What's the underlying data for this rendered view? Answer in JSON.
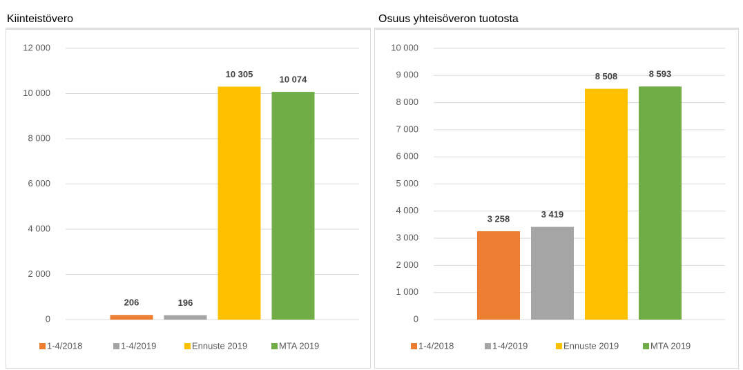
{
  "chart_data": [
    {
      "type": "bar",
      "title": "Kiinteistövero",
      "series": [
        {
          "name": "1-4/2018",
          "color": "#ed7d31",
          "values": [
            206
          ],
          "value_labels": [
            "206"
          ]
        },
        {
          "name": "1-4/2019",
          "color": "#a5a5a5",
          "values": [
            196
          ],
          "value_labels": [
            "196"
          ]
        },
        {
          "name": "Ennuste 2019",
          "color": "#ffc000",
          "values": [
            10305
          ],
          "value_labels": [
            "10 305"
          ]
        },
        {
          "name": "MTA 2019",
          "color": "#70ad47",
          "values": [
            10074
          ],
          "value_labels": [
            "10 074"
          ]
        }
      ],
      "ylim": [
        0,
        12000
      ],
      "yticks": [
        0,
        {
          "value": 2000,
          "label": "2 000"
        },
        {
          "value": 4000,
          "label": "4 000"
        },
        {
          "value": 6000,
          "label": "6 000"
        },
        {
          "value": 8000,
          "label": "8 000"
        },
        {
          "value": 10000,
          "label": "10 000"
        },
        {
          "value": 12000,
          "label": "12 000"
        }
      ],
      "grid": true,
      "legend": "bottom"
    },
    {
      "type": "bar",
      "title": "Osuus yhteisöveron tuotosta",
      "series": [
        {
          "name": "1-4/2018",
          "color": "#ed7d31",
          "values": [
            3258
          ],
          "value_labels": [
            "3 258"
          ]
        },
        {
          "name": "1-4/2019",
          "color": "#a5a5a5",
          "values": [
            3419
          ],
          "value_labels": [
            "3 419"
          ]
        },
        {
          "name": "Ennuste 2019",
          "color": "#ffc000",
          "values": [
            8508
          ],
          "value_labels": [
            "8 508"
          ]
        },
        {
          "name": "MTA 2019",
          "color": "#70ad47",
          "values": [
            8593
          ],
          "value_labels": [
            "8 593"
          ]
        }
      ],
      "ylim": [
        0,
        10000
      ],
      "yticks": [
        0,
        {
          "value": 1000,
          "label": "1 000"
        },
        {
          "value": 2000,
          "label": "2 000"
        },
        {
          "value": 3000,
          "label": "3 000"
        },
        {
          "value": 4000,
          "label": "4 000"
        },
        {
          "value": 5000,
          "label": "5 000"
        },
        {
          "value": 6000,
          "label": "6 000"
        },
        {
          "value": 7000,
          "label": "7 000"
        },
        {
          "value": 8000,
          "label": "8 000"
        },
        {
          "value": 9000,
          "label": "9 000"
        },
        {
          "value": 10000,
          "label": "10 000"
        }
      ],
      "grid": true,
      "legend": "bottom"
    }
  ]
}
